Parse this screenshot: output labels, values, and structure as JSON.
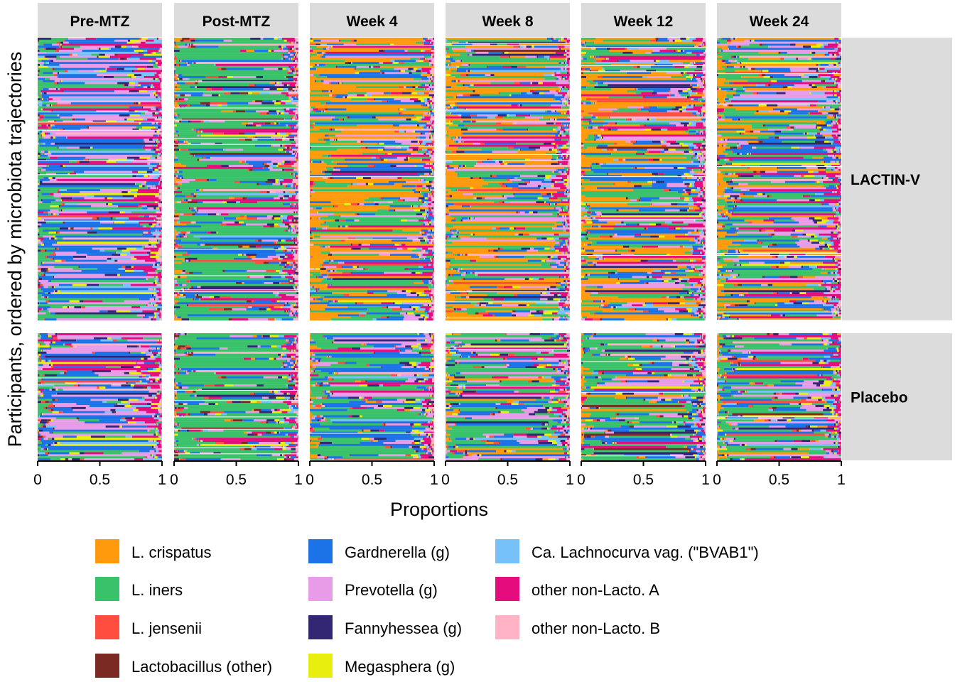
{
  "chart_data": {
    "type": "bar",
    "orientation": "horizontal-stacked-proportion",
    "xlabel": "Proportions",
    "ylabel": "Participants, ordered by microbiota trajectories",
    "xlim": [
      0,
      1
    ],
    "xticks": [
      "0",
      "0.5",
      "1"
    ],
    "panel_columns": [
      "Pre-MTZ",
      "Post-MTZ",
      "Week 4",
      "Week 8",
      "Week 12",
      "Week 24"
    ],
    "panel_rows": [
      {
        "name": "LACTIN-V",
        "participants": 140
      },
      {
        "name": "Placebo",
        "participants": 62
      }
    ],
    "legend": [
      {
        "label": "L. crispatus",
        "color": "#FF9A0D"
      },
      {
        "label": "L. iners",
        "color": "#3AC26A"
      },
      {
        "label": "L. jensenii",
        "color": "#FF4D3F"
      },
      {
        "label": "Lactobacillus (other)",
        "color": "#7A2A22"
      },
      {
        "label": "Gardnerella (g)",
        "color": "#1C73E8"
      },
      {
        "label": "Prevotella (g)",
        "color": "#E89CE8"
      },
      {
        "label": "Fannyhessea (g)",
        "color": "#332672"
      },
      {
        "label": "Megasphera (g)",
        "color": "#E8EE0E"
      },
      {
        "label": "Ca. Lachnocurva vag. (\"BVAB1\")",
        "color": "#76C2F8"
      },
      {
        "label": "other non-Lacto. A",
        "color": "#E50C7D"
      },
      {
        "label": "other non-Lacto. B",
        "color": "#FFB3C4"
      }
    ],
    "approx_mean_composition": {
      "LACTIN-V": {
        "Pre-MTZ": [
          0.0,
          0.12,
          0.02,
          0.01,
          0.28,
          0.22,
          0.06,
          0.06,
          0.08,
          0.12,
          0.03
        ],
        "Post-MTZ": [
          0.04,
          0.48,
          0.05,
          0.03,
          0.14,
          0.08,
          0.04,
          0.02,
          0.03,
          0.06,
          0.03
        ],
        "Week 4": [
          0.36,
          0.2,
          0.03,
          0.01,
          0.14,
          0.1,
          0.03,
          0.03,
          0.03,
          0.05,
          0.02
        ],
        "Week 8": [
          0.3,
          0.18,
          0.03,
          0.01,
          0.16,
          0.12,
          0.04,
          0.03,
          0.04,
          0.07,
          0.02
        ],
        "Week 12": [
          0.28,
          0.2,
          0.03,
          0.01,
          0.16,
          0.11,
          0.04,
          0.03,
          0.05,
          0.07,
          0.02
        ],
        "Week 24": [
          0.2,
          0.18,
          0.02,
          0.02,
          0.18,
          0.14,
          0.05,
          0.04,
          0.06,
          0.09,
          0.02
        ]
      },
      "Placebo": {
        "Pre-MTZ": [
          0.0,
          0.1,
          0.02,
          0.02,
          0.28,
          0.24,
          0.07,
          0.06,
          0.07,
          0.12,
          0.02
        ],
        "Post-MTZ": [
          0.02,
          0.5,
          0.04,
          0.03,
          0.14,
          0.08,
          0.04,
          0.03,
          0.03,
          0.07,
          0.02
        ],
        "Week 4": [
          0.04,
          0.4,
          0.03,
          0.01,
          0.2,
          0.12,
          0.05,
          0.04,
          0.03,
          0.06,
          0.02
        ],
        "Week 8": [
          0.05,
          0.36,
          0.03,
          0.01,
          0.2,
          0.13,
          0.06,
          0.04,
          0.04,
          0.06,
          0.02
        ],
        "Week 12": [
          0.05,
          0.36,
          0.02,
          0.02,
          0.2,
          0.13,
          0.06,
          0.04,
          0.04,
          0.06,
          0.02
        ],
        "Week 24": [
          0.06,
          0.3,
          0.02,
          0.02,
          0.22,
          0.14,
          0.06,
          0.05,
          0.05,
          0.07,
          0.01
        ]
      }
    }
  }
}
